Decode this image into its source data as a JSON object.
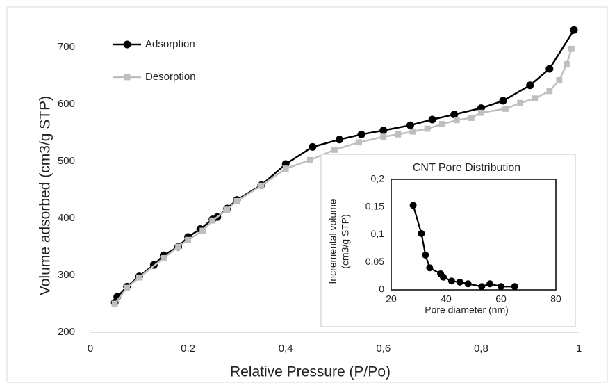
{
  "chart_data": [
    {
      "type": "line",
      "xlabel": "Relative Pressure (P/Po)",
      "ylabel": "Volume adsorbed (cm3/g STP)",
      "xlim": [
        0,
        1
      ],
      "ylim": [
        200,
        740
      ],
      "xticks": [
        0,
        {
          "value": 0.2,
          "label": "0,2"
        },
        {
          "value": 0.4,
          "label": "0,4"
        },
        {
          "value": 0.6,
          "label": "0,6"
        },
        {
          "value": 0.8,
          "label": "0,8"
        },
        1
      ],
      "yticks": [
        200,
        300,
        400,
        500,
        600,
        700
      ],
      "legend": "upper left",
      "series": [
        {
          "name": "Adsorption",
          "color": "#000000",
          "marker": "circle",
          "x": [
            0.05,
            0.055,
            0.075,
            0.1,
            0.13,
            0.15,
            0.18,
            0.2,
            0.225,
            0.25,
            0.26,
            0.28,
            0.3,
            0.35,
            0.4,
            0.455,
            0.51,
            0.555,
            0.6,
            0.655,
            0.7,
            0.745,
            0.8,
            0.845,
            0.9,
            0.94,
            0.99
          ],
          "values": [
            252,
            262,
            280,
            298,
            318,
            335,
            350,
            367,
            381,
            398,
            402,
            417,
            432,
            458,
            495,
            525,
            538,
            547,
            554,
            563,
            573,
            582,
            593,
            606,
            633,
            662,
            730
          ]
        },
        {
          "name": "Desorption",
          "color": "#bfbfbf",
          "marker": "square",
          "x": [
            0.05,
            0.075,
            0.1,
            0.15,
            0.18,
            0.2,
            0.23,
            0.25,
            0.28,
            0.3,
            0.35,
            0.4,
            0.45,
            0.5,
            0.55,
            0.6,
            0.63,
            0.66,
            0.69,
            0.72,
            0.75,
            0.78,
            0.8,
            0.85,
            0.88,
            0.91,
            0.94,
            0.96,
            0.975,
            0.985
          ],
          "values": [
            250,
            278,
            296,
            330,
            350,
            362,
            378,
            396,
            415,
            430,
            457,
            487,
            502,
            520,
            533,
            543,
            547,
            552,
            557,
            565,
            572,
            576,
            585,
            592,
            602,
            610,
            623,
            642,
            670,
            697
          ]
        }
      ]
    },
    {
      "type": "line",
      "title": "CNT Pore Distribution",
      "xlabel": "Pore diameter (nm)",
      "ylabel": [
        "Incremental volume",
        "(cm3/g STP)"
      ],
      "xlim": [
        20,
        80
      ],
      "ylim": [
        0,
        0.2
      ],
      "xticks": [
        20,
        40,
        60,
        80
      ],
      "yticks": [
        0,
        {
          "value": 0.05,
          "label": "0,05"
        },
        {
          "value": 0.1,
          "label": "0,1"
        },
        {
          "value": 0.15,
          "label": "0,15"
        },
        {
          "value": 0.2,
          "label": "0,2"
        }
      ],
      "series": [
        {
          "color": "#000000",
          "marker": "circle",
          "x": [
            28,
            31,
            32.5,
            34,
            38,
            39,
            42,
            45,
            48,
            53,
            56,
            60,
            65
          ],
          "values": [
            0.153,
            0.102,
            0.063,
            0.04,
            0.029,
            0.023,
            0.016,
            0.014,
            0.011,
            0.006,
            0.011,
            0.006,
            0.006
          ]
        }
      ]
    }
  ]
}
